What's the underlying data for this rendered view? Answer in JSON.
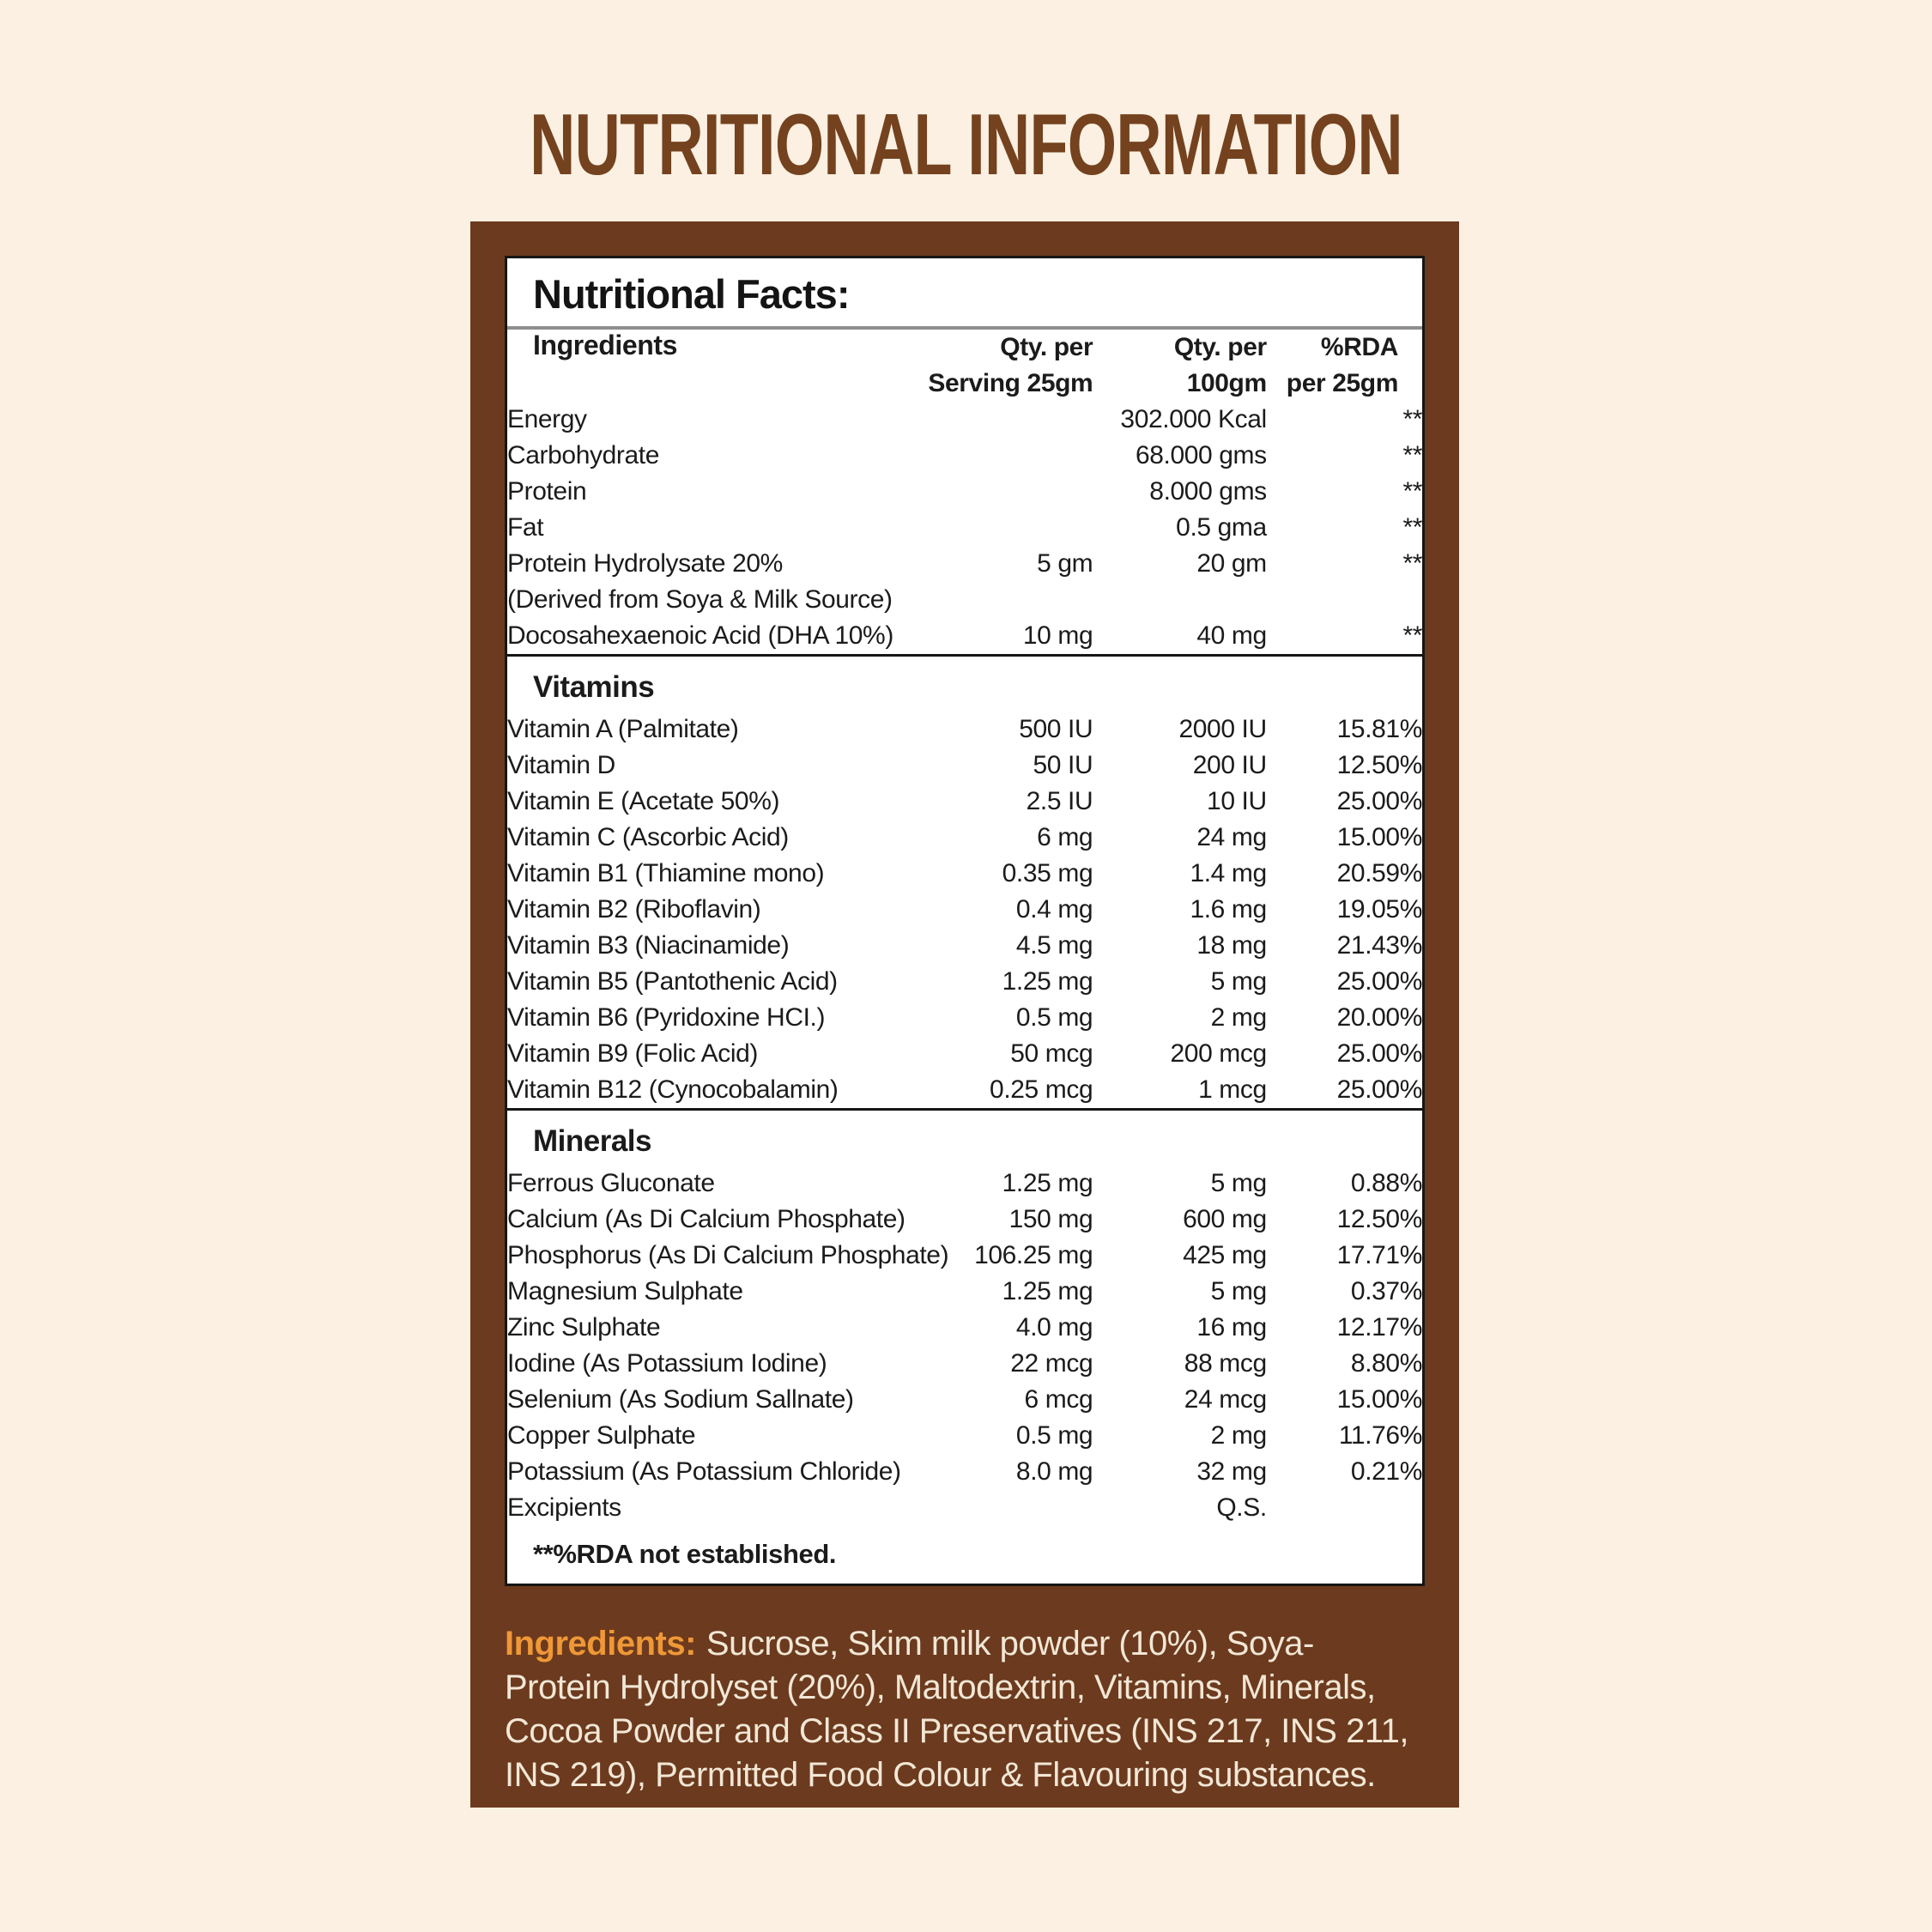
{
  "page": {
    "title": "NUTRITIONAL INFORMATION"
  },
  "panel": {
    "heading": "Nutritional Facts:",
    "headers": {
      "col1": "Ingredients",
      "col2_line1": "Qty. per",
      "col2_line2": "Serving 25gm",
      "col3_line1": "Qty. per",
      "col3_line2": "100gm",
      "col4_line1": "%RDA",
      "col4_line2": "per 25gm"
    },
    "sections": [
      {
        "heading": "",
        "rows": [
          [
            "Energy",
            "",
            "302.000 Kcal",
            "**"
          ],
          [
            "Carbohydrate",
            "",
            "68.000 gms",
            "**"
          ],
          [
            "Protein",
            "",
            "8.000 gms",
            "**"
          ],
          [
            "Fat",
            "",
            "0.5 gma",
            "**"
          ],
          [
            "Protein Hydrolysate 20%",
            "5 gm",
            "20 gm",
            "**"
          ],
          [
            "(Derived from Soya & Milk Source)",
            "",
            "",
            ""
          ],
          [
            "Docosahexaenoic Acid (DHA 10%)",
            "10 mg",
            "40 mg",
            "**"
          ]
        ]
      },
      {
        "heading": "Vitamins",
        "rows": [
          [
            "Vitamin A (Palmitate)",
            "500 IU",
            "2000 IU",
            "15.81%"
          ],
          [
            "Vitamin D",
            "50 IU",
            "200 IU",
            "12.50%"
          ],
          [
            "Vitamin E (Acetate 50%)",
            "2.5 IU",
            "10 IU",
            "25.00%"
          ],
          [
            "Vitamin C (Ascorbic Acid)",
            "6 mg",
            "24 mg",
            "15.00%"
          ],
          [
            "Vitamin B1 (Thiamine mono)",
            "0.35 mg",
            "1.4 mg",
            "20.59%"
          ],
          [
            "Vitamin B2 (Riboflavin)",
            "0.4 mg",
            "1.6 mg",
            "19.05%"
          ],
          [
            "Vitamin B3 (Niacinamide)",
            "4.5 mg",
            "18 mg",
            "21.43%"
          ],
          [
            "Vitamin B5 (Pantothenic Acid)",
            "1.25 mg",
            "5 mg",
            "25.00%"
          ],
          [
            "Vitamin B6 (Pyridoxine HCI.)",
            "0.5 mg",
            "2 mg",
            "20.00%"
          ],
          [
            "Vitamin B9 (Folic Acid)",
            "50 mcg",
            "200 mcg",
            "25.00%"
          ],
          [
            "Vitamin B12 (Cynocobalamin)",
            "0.25 mcg",
            "1 mcg",
            "25.00%"
          ]
        ]
      },
      {
        "heading": "Minerals",
        "rows": [
          [
            "Ferrous Gluconate",
            "1.25 mg",
            "5 mg",
            "0.88%"
          ],
          [
            "Calcium (As Di Calcium Phosphate)",
            "150 mg",
            "600 mg",
            "12.50%"
          ],
          [
            "Phosphorus (As Di Calcium Phosphate)",
            "106.25 mg",
            "425 mg",
            "17.71%"
          ],
          [
            "Magnesium Sulphate",
            "1.25 mg",
            "5 mg",
            "0.37%"
          ],
          [
            "Zinc Sulphate",
            "4.0 mg",
            "16 mg",
            "12.17%"
          ],
          [
            "Iodine (As Potassium Iodine)",
            "22 mcg",
            "88 mcg",
            "8.80%"
          ],
          [
            "Selenium (As Sodium Sallnate)",
            "6 mcg",
            "24 mcg",
            "15.00%"
          ],
          [
            "Copper Sulphate",
            "0.5 mg",
            "2 mg",
            "11.76%"
          ],
          [
            "Potassium (As Potassium Chloride)",
            "8.0 mg",
            "32 mg",
            "0.21%"
          ],
          [
            "Excipients",
            "",
            "Q.S.",
            ""
          ]
        ]
      }
    ],
    "footnote": "**%RDA not established."
  },
  "ingredients": {
    "label": "Ingredients:",
    "lines": [
      "Sucrose, Skim milk powder (10%), Soya-",
      "Protein Hydrolyset (20%), Maltodextrin, Vitamins, Minerals,",
      "Cocoa Powder and Class II Preservatives (INS 217, INS 211,",
      "INS 219), Permitted Food Colour & Flavouring substances."
    ]
  },
  "colors": {
    "background_cream": "#fbf0e2",
    "card_brown": "#6c3a1e",
    "title_brown": "#74421e",
    "accent_orange": "#ef9837",
    "paragraph_cream": "#f2e7d6",
    "text_black": "#1b1b1b",
    "separator_gray": "#8f8f8f"
  }
}
